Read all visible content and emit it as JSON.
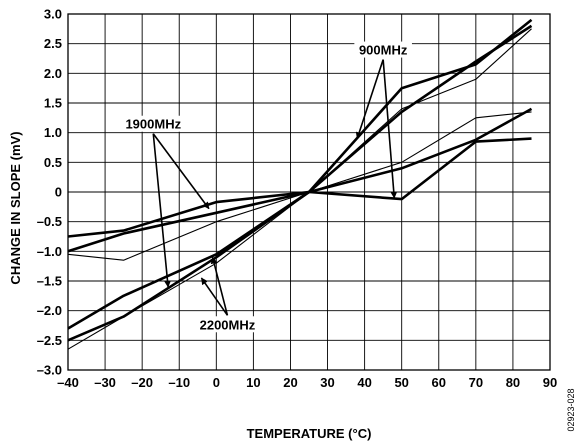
{
  "chart_data": {
    "type": "line",
    "xlabel": "TEMPERATURE (°C)",
    "ylabel": "CHANGE IN SLOPE (mV)",
    "xlim": [
      -40,
      90
    ],
    "ylim": [
      -3.0,
      3.0
    ],
    "x_ticks": [
      "–40",
      "–30",
      "–20",
      "–10",
      "0",
      "10",
      "20",
      "30",
      "40",
      "50",
      "60",
      "70",
      "80",
      "90"
    ],
    "y_ticks": [
      "3.0",
      "2.5",
      "2.0",
      "1.5",
      "1.0",
      "0.5",
      "0",
      "–0.5",
      "–1.0",
      "–1.5",
      "–2.0",
      "–2.5",
      "–3.0"
    ],
    "grid": true,
    "series": [
      {
        "name": "",
        "weight": "thick",
        "x": [
          -40,
          -25,
          0,
          25,
          50,
          70,
          85
        ],
        "y": [
          -0.75,
          -0.65,
          -0.17,
          0.0,
          -0.12,
          0.85,
          0.9
        ]
      },
      {
        "name": "",
        "weight": "thin",
        "x": [
          -40,
          -25,
          0,
          25,
          50,
          70,
          85
        ],
        "y": [
          -1.05,
          -1.15,
          -0.5,
          0.0,
          0.5,
          1.25,
          1.35
        ]
      },
      {
        "name": "",
        "weight": "thick",
        "x": [
          -40,
          -25,
          0,
          25,
          50,
          70,
          85
        ],
        "y": [
          -1.0,
          -0.7,
          -0.35,
          0.0,
          0.4,
          0.88,
          1.4
        ]
      },
      {
        "name": "",
        "weight": "thick",
        "x": [
          -40,
          -25,
          0,
          25,
          50,
          70,
          85
        ],
        "y": [
          -2.3,
          -1.75,
          -1.05,
          0.0,
          1.75,
          2.15,
          2.9
        ]
      },
      {
        "name": "",
        "weight": "thick",
        "x": [
          -40,
          -25,
          0,
          25,
          50,
          70,
          85
        ],
        "y": [
          -2.5,
          -2.1,
          -1.1,
          0.0,
          1.35,
          2.2,
          2.8
        ]
      },
      {
        "name": "",
        "weight": "thin",
        "x": [
          -40,
          -25,
          0,
          25,
          50,
          70,
          85
        ],
        "y": [
          -2.65,
          -2.1,
          -1.2,
          0.0,
          1.4,
          1.9,
          2.75
        ]
      }
    ],
    "annotations": [
      {
        "text": "900MHz",
        "x": 45,
        "y": 2.35,
        "arrows_to": [
          [
            38,
            0.9
          ],
          [
            48,
            -0.1
          ]
        ]
      },
      {
        "text": "1900MHz",
        "x": -17,
        "y": 1.1,
        "arrows_to": [
          [
            -2,
            -0.28
          ],
          [
            -13,
            -1.6
          ]
        ]
      },
      {
        "text": "2200MHz",
        "x": 3,
        "y": -2.28,
        "arrows_to": [
          [
            -4,
            -1.45
          ],
          [
            -1,
            -1.1
          ]
        ]
      }
    ]
  },
  "figure_id": "02923-028"
}
